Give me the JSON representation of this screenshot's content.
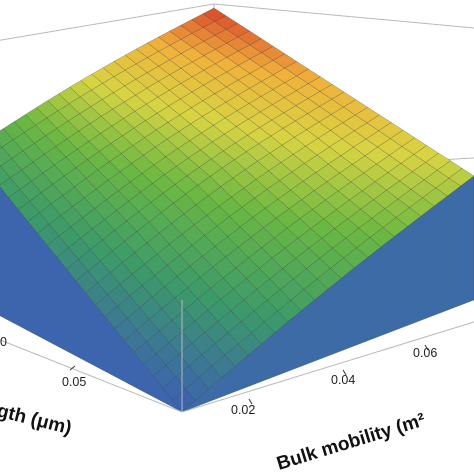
{
  "chart_data": {
    "type": "surface",
    "title": "",
    "xlabel": "Bulk mobility (m²",
    "ylabel": "gth  (μm)",
    "zlabel": "",
    "x_ticks": [
      "0.02",
      "0.04",
      "0.06"
    ],
    "y_ticks": [
      "0",
      "0.05"
    ],
    "x_range": [
      0.01,
      0.08
    ],
    "y_range": [
      0,
      0.1
    ],
    "colormap": [
      "#3c5fb4",
      "#3c9a6a",
      "#6bb843",
      "#d7d443",
      "#f0b23c",
      "#d8452c"
    ],
    "surface_trend": "increases with both bulk mobility and length; maximum at the far corner",
    "mesh_grid": true
  }
}
